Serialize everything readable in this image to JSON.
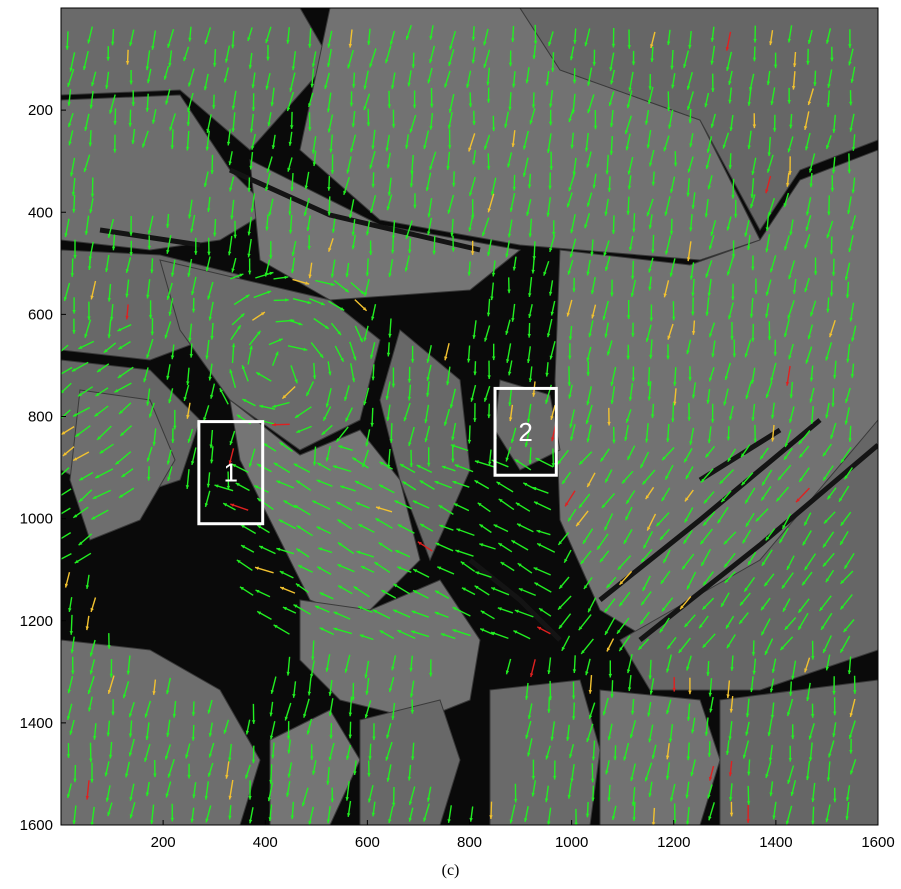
{
  "figure": {
    "caption": "(c)",
    "image_content": "sea-ice SAR image with motion vector field",
    "colors": {
      "ice": "#6d6d6d",
      "water": "#0a0a0a",
      "vector_green": "#22ee22",
      "vector_yellow": "#f2c230",
      "vector_red": "#e02020",
      "box": "#ffffff"
    }
  },
  "chart_data": {
    "type": "image",
    "xlim": [
      0,
      1600
    ],
    "ylim": [
      1600,
      0
    ],
    "x_ticks": [
      200,
      400,
      600,
      800,
      1000,
      1200,
      1400,
      1600
    ],
    "y_ticks": [
      200,
      400,
      600,
      800,
      1000,
      1200,
      1400,
      1600
    ],
    "annotations": [
      {
        "label": "1",
        "x0": 270,
        "y0": 810,
        "x1": 395,
        "y1": 1010
      },
      {
        "label": "2",
        "x0": 850,
        "y0": 745,
        "x1": 970,
        "y1": 915
      }
    ]
  }
}
